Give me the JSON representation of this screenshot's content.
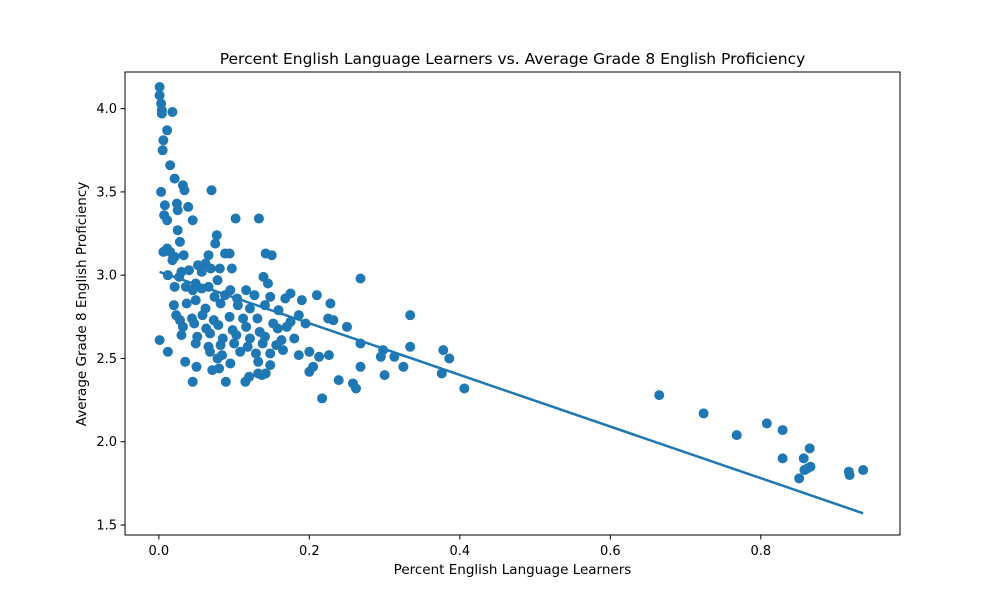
{
  "chart_data": {
    "type": "scatter",
    "title": "Percent English Language Learners vs. Average Grade 8 English Proficiency",
    "xlabel": "Percent English Language Learners",
    "ylabel": "Average Grade 8 English Proficiency",
    "xlim": [
      -0.045,
      0.985
    ],
    "ylim": [
      1.44,
      4.22
    ],
    "xticks": [
      {
        "value": 0.0,
        "label": "0.0"
      },
      {
        "value": 0.2,
        "label": "0.2"
      },
      {
        "value": 0.4,
        "label": "0.4"
      },
      {
        "value": 0.6,
        "label": "0.6"
      },
      {
        "value": 0.8,
        "label": "0.8"
      }
    ],
    "yticks": [
      {
        "value": 1.5,
        "label": "1.5"
      },
      {
        "value": 2.0,
        "label": "2.0"
      },
      {
        "value": 2.5,
        "label": "2.5"
      },
      {
        "value": 3.0,
        "label": "3.0"
      },
      {
        "value": 3.5,
        "label": "3.5"
      },
      {
        "value": 4.0,
        "label": "4.0"
      }
    ],
    "grid": false,
    "legend": "none",
    "series": [
      {
        "kind": "points",
        "color": "#1f77b4",
        "points": [
          [
            0.001,
            4.13
          ],
          [
            0.001,
            4.08
          ],
          [
            0.003,
            4.03
          ],
          [
            0.004,
            3.99
          ],
          [
            0.004,
            3.97
          ],
          [
            0.018,
            3.98
          ],
          [
            0.006,
            3.81
          ],
          [
            0.005,
            3.75
          ],
          [
            0.011,
            3.87
          ],
          [
            0.015,
            3.66
          ],
          [
            0.021,
            3.58
          ],
          [
            0.003,
            3.5
          ],
          [
            0.008,
            3.42
          ],
          [
            0.007,
            3.36
          ],
          [
            0.011,
            3.33
          ],
          [
            0.024,
            3.43
          ],
          [
            0.025,
            3.39
          ],
          [
            0.032,
            3.54
          ],
          [
            0.034,
            3.51
          ],
          [
            0.039,
            3.41
          ],
          [
            0.045,
            3.33
          ],
          [
            0.07,
            3.51
          ],
          [
            0.102,
            3.34
          ],
          [
            0.133,
            3.34
          ],
          [
            0.025,
            3.27
          ],
          [
            0.028,
            3.2
          ],
          [
            0.021,
            3.11
          ],
          [
            0.015,
            3.14
          ],
          [
            0.006,
            3.14
          ],
          [
            0.011,
            3.16
          ],
          [
            0.033,
            3.12
          ],
          [
            0.077,
            3.24
          ],
          [
            0.075,
            3.19
          ],
          [
            0.088,
            3.13
          ],
          [
            0.094,
            3.13
          ],
          [
            0.066,
            3.12
          ],
          [
            0.142,
            3.13
          ],
          [
            0.15,
            3.12
          ],
          [
            0.018,
            3.09
          ],
          [
            0.04,
            3.03
          ],
          [
            0.052,
            3.06
          ],
          [
            0.062,
            3.07
          ],
          [
            0.069,
            3.04
          ],
          [
            0.081,
            3.04
          ],
          [
            0.097,
            3.04
          ],
          [
            0.057,
            3.02
          ],
          [
            0.012,
            3.0
          ],
          [
            0.027,
            2.99
          ],
          [
            0.03,
            3.02
          ],
          [
            0.049,
            2.95
          ],
          [
            0.078,
            2.97
          ],
          [
            0.139,
            2.99
          ],
          [
            0.145,
            2.95
          ],
          [
            0.268,
            2.98
          ],
          [
            0.021,
            2.93
          ],
          [
            0.036,
            2.93
          ],
          [
            0.045,
            2.91
          ],
          [
            0.057,
            2.92
          ],
          [
            0.066,
            2.93
          ],
          [
            0.074,
            2.87
          ],
          [
            0.088,
            2.88
          ],
          [
            0.095,
            2.91
          ],
          [
            0.104,
            2.86
          ],
          [
            0.116,
            2.91
          ],
          [
            0.127,
            2.88
          ],
          [
            0.148,
            2.87
          ],
          [
            0.168,
            2.86
          ],
          [
            0.175,
            2.89
          ],
          [
            0.19,
            2.85
          ],
          [
            0.21,
            2.88
          ],
          [
            0.228,
            2.83
          ],
          [
            0.02,
            2.82
          ],
          [
            0.037,
            2.83
          ],
          [
            0.049,
            2.85
          ],
          [
            0.062,
            2.8
          ],
          [
            0.082,
            2.83
          ],
          [
            0.105,
            2.82
          ],
          [
            0.121,
            2.8
          ],
          [
            0.141,
            2.82
          ],
          [
            0.159,
            2.79
          ],
          [
            0.186,
            2.76
          ],
          [
            0.023,
            2.76
          ],
          [
            0.028,
            2.73
          ],
          [
            0.044,
            2.74
          ],
          [
            0.058,
            2.76
          ],
          [
            0.073,
            2.73
          ],
          [
            0.094,
            2.75
          ],
          [
            0.112,
            2.74
          ],
          [
            0.131,
            2.74
          ],
          [
            0.152,
            2.71
          ],
          [
            0.175,
            2.72
          ],
          [
            0.195,
            2.71
          ],
          [
            0.225,
            2.74
          ],
          [
            0.232,
            2.73
          ],
          [
            0.334,
            2.76
          ],
          [
            0.032,
            2.69
          ],
          [
            0.047,
            2.71
          ],
          [
            0.063,
            2.68
          ],
          [
            0.079,
            2.7
          ],
          [
            0.098,
            2.67
          ],
          [
            0.116,
            2.69
          ],
          [
            0.134,
            2.66
          ],
          [
            0.158,
            2.68
          ],
          [
            0.17,
            2.69
          ],
          [
            0.25,
            2.69
          ],
          [
            0.03,
            2.64
          ],
          [
            0.051,
            2.63
          ],
          [
            0.068,
            2.65
          ],
          [
            0.085,
            2.62
          ],
          [
            0.103,
            2.64
          ],
          [
            0.121,
            2.62
          ],
          [
            0.141,
            2.63
          ],
          [
            0.163,
            2.61
          ],
          [
            0.18,
            2.62
          ],
          [
            0.001,
            2.61
          ],
          [
            0.049,
            2.59
          ],
          [
            0.066,
            2.57
          ],
          [
            0.082,
            2.58
          ],
          [
            0.1,
            2.59
          ],
          [
            0.118,
            2.57
          ],
          [
            0.138,
            2.59
          ],
          [
            0.156,
            2.58
          ],
          [
            0.268,
            2.59
          ],
          [
            0.012,
            2.54
          ],
          [
            0.068,
            2.54
          ],
          [
            0.084,
            2.52
          ],
          [
            0.108,
            2.54
          ],
          [
            0.129,
            2.53
          ],
          [
            0.148,
            2.53
          ],
          [
            0.165,
            2.55
          ],
          [
            0.186,
            2.52
          ],
          [
            0.2,
            2.54
          ],
          [
            0.213,
            2.51
          ],
          [
            0.226,
            2.52
          ],
          [
            0.298,
            2.55
          ],
          [
            0.295,
            2.51
          ],
          [
            0.313,
            2.51
          ],
          [
            0.334,
            2.57
          ],
          [
            0.378,
            2.55
          ],
          [
            0.386,
            2.5
          ],
          [
            0.035,
            2.48
          ],
          [
            0.05,
            2.45
          ],
          [
            0.078,
            2.5
          ],
          [
            0.095,
            2.47
          ],
          [
            0.132,
            2.48
          ],
          [
            0.148,
            2.46
          ],
          [
            0.205,
            2.45
          ],
          [
            0.268,
            2.45
          ],
          [
            0.071,
            2.43
          ],
          [
            0.08,
            2.44
          ],
          [
            0.2,
            2.42
          ],
          [
            0.132,
            2.41
          ],
          [
            0.142,
            2.41
          ],
          [
            0.137,
            2.4
          ],
          [
            0.12,
            2.39
          ],
          [
            0.115,
            2.36
          ],
          [
            0.089,
            2.36
          ],
          [
            0.045,
            2.36
          ],
          [
            0.239,
            2.37
          ],
          [
            0.3,
            2.4
          ],
          [
            0.325,
            2.45
          ],
          [
            0.376,
            2.41
          ],
          [
            0.258,
            2.35
          ],
          [
            0.262,
            2.32
          ],
          [
            0.406,
            2.32
          ],
          [
            0.217,
            2.26
          ],
          [
            0.665,
            2.28
          ],
          [
            0.724,
            2.17
          ],
          [
            0.768,
            2.04
          ],
          [
            0.808,
            2.11
          ],
          [
            0.829,
            2.07
          ],
          [
            0.829,
            1.9
          ],
          [
            0.851,
            1.78
          ],
          [
            0.857,
            1.9
          ],
          [
            0.858,
            1.83
          ],
          [
            0.862,
            1.84
          ],
          [
            0.865,
            1.96
          ],
          [
            0.866,
            1.85
          ],
          [
            0.917,
            1.82
          ],
          [
            0.918,
            1.8
          ],
          [
            0.936,
            1.83
          ]
        ]
      },
      {
        "kind": "fit-line",
        "color": "#1f77b4",
        "points": [
          [
            0.001,
            3.02
          ],
          [
            0.936,
            1.57
          ]
        ]
      }
    ]
  }
}
